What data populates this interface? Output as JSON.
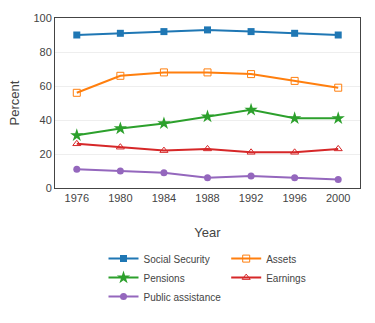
{
  "chart_data": {
    "type": "line",
    "x": [
      1976,
      1980,
      1984,
      1988,
      1992,
      1996,
      2000
    ],
    "series": [
      {
        "name": "Social Security",
        "values": [
          90,
          91,
          92,
          93,
          92,
          91,
          90
        ],
        "marker": "square"
      },
      {
        "name": "Assets",
        "values": [
          56,
          66,
          68,
          68,
          67,
          63,
          59
        ],
        "marker": "square-open"
      },
      {
        "name": "Pensions",
        "values": [
          31,
          35,
          38,
          42,
          46,
          41,
          41
        ],
        "marker": "star"
      },
      {
        "name": "Earnings",
        "values": [
          26,
          24,
          22,
          23,
          21,
          21,
          23
        ],
        "marker": "triangle-up-open"
      },
      {
        "name": "Public assistance",
        "values": [
          11,
          10,
          9,
          6,
          7,
          6,
          5
        ],
        "marker": "circle"
      }
    ],
    "xlabel": "Year",
    "ylabel": "Percent",
    "xlim": [
      1974,
      2002
    ],
    "xticks": [
      1976,
      1980,
      1984,
      1988,
      1992,
      1996,
      2000
    ],
    "ylim": [
      0,
      100
    ],
    "yticks": [
      0,
      20,
      40,
      60,
      80,
      100
    ],
    "grid": true,
    "legend": "bottom"
  }
}
